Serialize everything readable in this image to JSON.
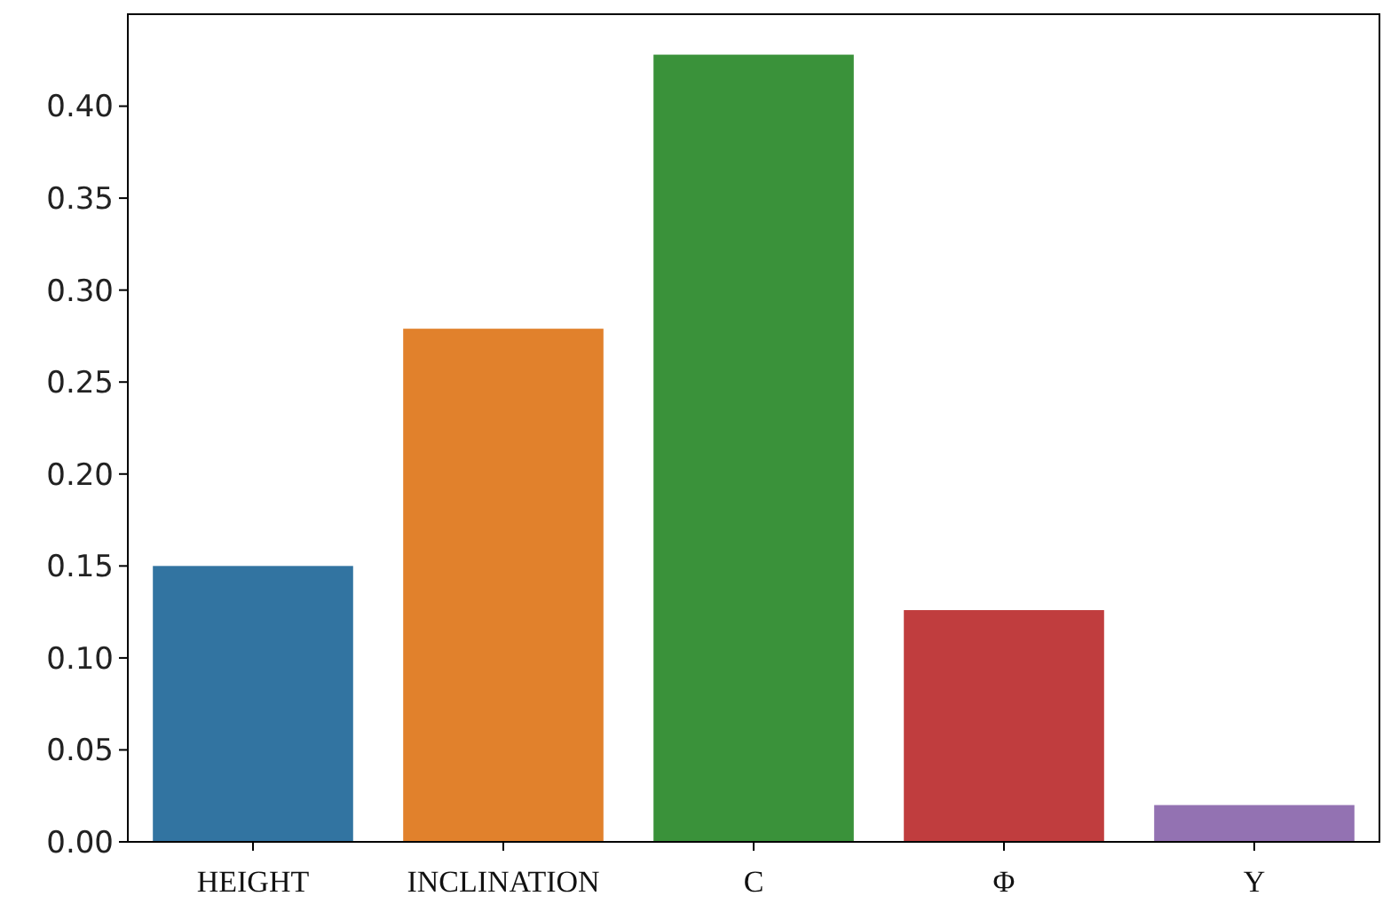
{
  "chart_data": {
    "type": "bar",
    "categories": [
      "HEIGHT",
      "INCLINATION",
      "C",
      "Φ",
      "Y"
    ],
    "values": [
      0.15,
      0.279,
      0.428,
      0.126,
      0.02
    ],
    "colors": [
      "#3274a1",
      "#e1812c",
      "#3a923a",
      "#c03d3e",
      "#9372b2"
    ],
    "ylim": [
      0,
      0.45
    ],
    "yticks": [
      {
        "value": 0,
        "label": "0.00"
      },
      {
        "value": 0.05,
        "label": "0.05"
      },
      {
        "value": 0.1,
        "label": "0.10"
      },
      {
        "value": 0.15,
        "label": "0.15"
      },
      {
        "value": 0.2,
        "label": "0.20"
      },
      {
        "value": 0.25,
        "label": "0.25"
      },
      {
        "value": 0.3,
        "label": "0.30"
      },
      {
        "value": 0.35,
        "label": "0.35"
      },
      {
        "value": 0.4,
        "label": "0.40"
      }
    ],
    "grid": false
  }
}
